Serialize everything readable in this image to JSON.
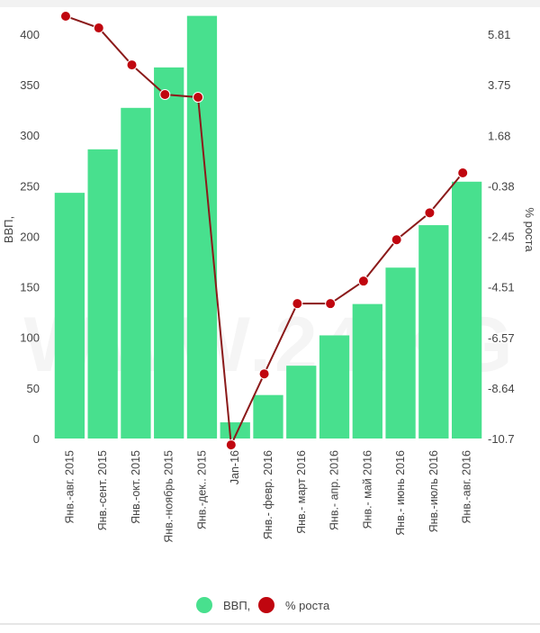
{
  "chart_data": {
    "type": "bar+line",
    "title": "",
    "watermark": "WWW.24.KG",
    "categories": [
      "Янв.-авг. 2015",
      "Янв.-сент. 2015",
      "Янв.-окт. 2015",
      "Янв.-ноябрь 2015",
      "Янв.-дек.. 2015",
      "Jan-16",
      "Янв.- февр. 2016",
      "Янв.- март 2016",
      "Янв.- апр. 2016",
      "Янв.- май 2016",
      "Янв.- июнь 2016",
      "Янв.-июль 2016",
      "Янв.-авг. 2016"
    ],
    "series": [
      {
        "name": "ВВП,",
        "type": "bar",
        "axis": "left",
        "color": "#48e08e",
        "values": [
          243,
          286,
          327,
          367,
          418,
          16,
          43,
          72,
          102,
          133,
          169,
          211,
          254
        ]
      },
      {
        "name": "% роста",
        "type": "line",
        "axis": "right",
        "color": "#c0060f",
        "line_color": "#8b1a1a",
        "values": [
          6.55,
          6.07,
          4.56,
          3.35,
          3.24,
          -10.96,
          -8.06,
          -5.19,
          -5.19,
          -4.27,
          -2.58,
          -1.48,
          0.15
        ]
      }
    ],
    "ylabel_left": "ВВП,",
    "ylabel_right": "% роста",
    "ylim_left": [
      0,
      423
    ],
    "ylim_right": [
      -10.7,
      6.77
    ],
    "yticks_left": [
      "0",
      "50",
      "100",
      "150",
      "200",
      "250",
      "300",
      "350",
      "400"
    ],
    "yticks_right": [
      "-10.7",
      "-8.64",
      "-6.57",
      "-4.51",
      "-2.45",
      "-0.38",
      "1.68",
      "3.75",
      "5.81"
    ],
    "grid": false,
    "legend_position": "bottom-center"
  }
}
